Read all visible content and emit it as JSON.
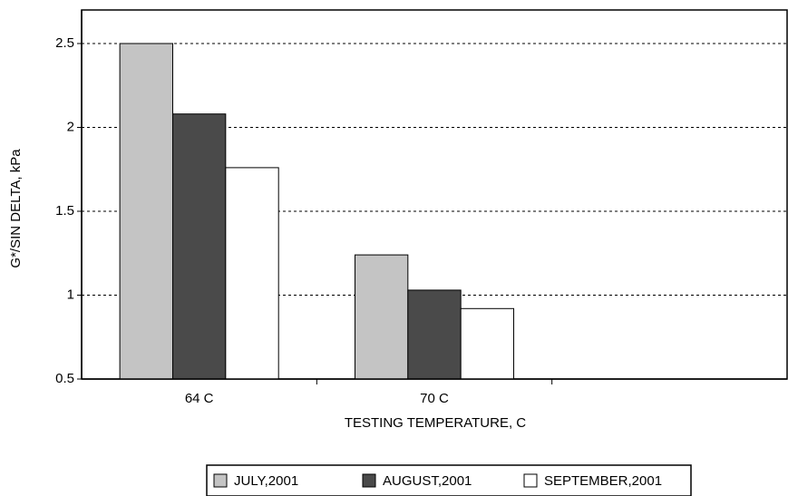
{
  "chart_data": {
    "type": "bar",
    "y_label": "G*/SIN DELTA, kPa",
    "x_label": "TESTING TEMPERATURE, C",
    "categories": [
      "64 C",
      "70 C",
      null
    ],
    "series": [
      {
        "name": "JULY,2001",
        "color": "#c4c4c4",
        "values": [
          2.5,
          1.24,
          null
        ]
      },
      {
        "name": "AUGUST,2001",
        "color": "#4a4a4a",
        "values": [
          2.08,
          1.03,
          null
        ]
      },
      {
        "name": "SEPTEMBER,2001",
        "color": "#ffffff",
        "values": [
          1.76,
          0.92,
          null
        ]
      }
    ],
    "ylim": [
      0.5,
      2.7
    ],
    "yticks": [
      0.5,
      1,
      1.5,
      2,
      2.5
    ],
    "grid": true,
    "legend": "bottom"
  }
}
